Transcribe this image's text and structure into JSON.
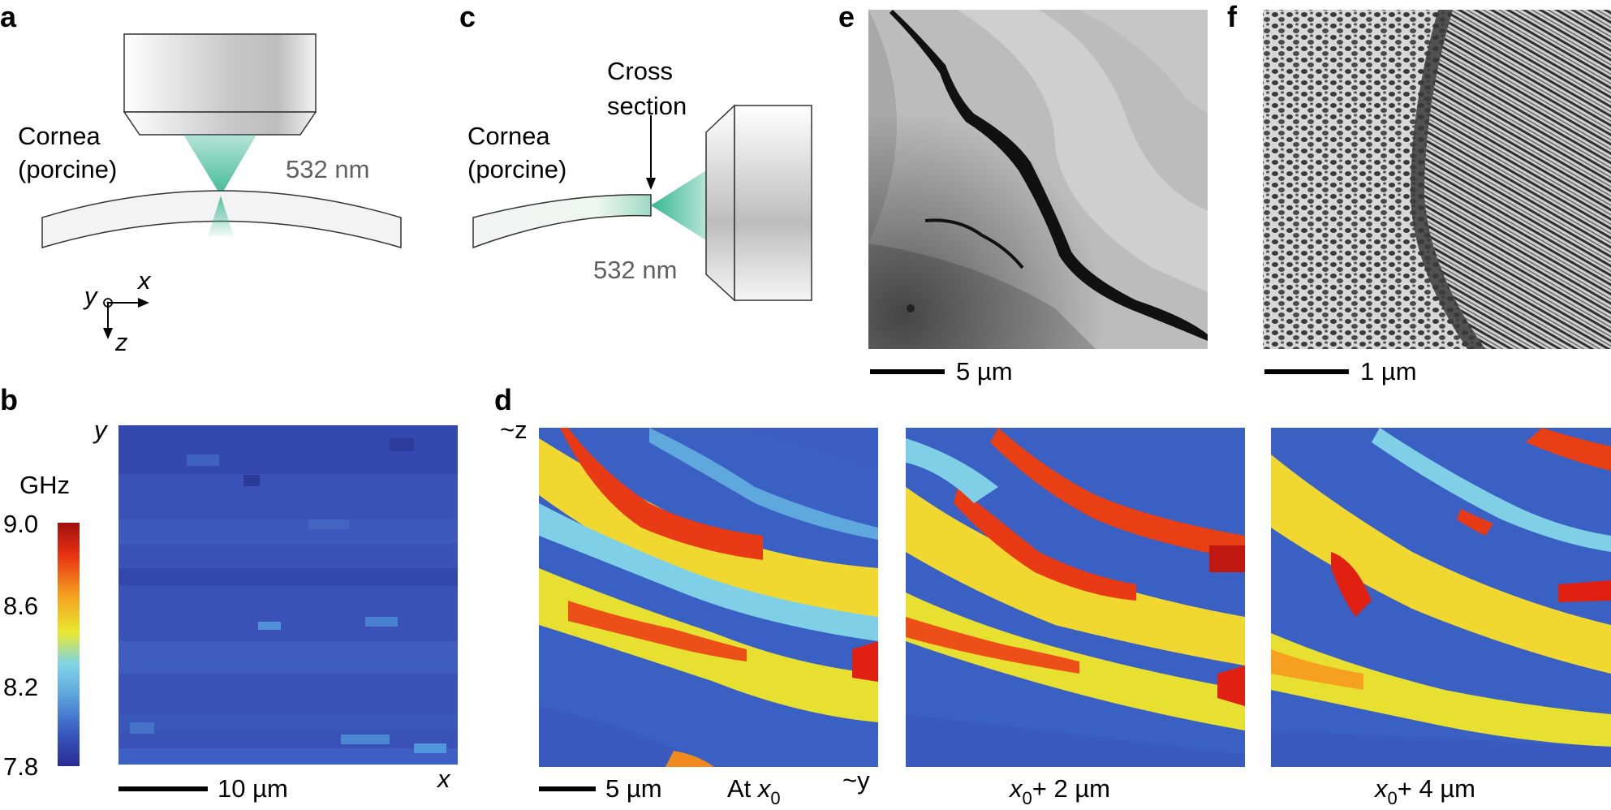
{
  "panels": {
    "a": {
      "letter": "a",
      "specimen_line1": "Cornea",
      "specimen_line2": "(porcine)",
      "wavelength": "532 nm",
      "axes": {
        "x": "x",
        "y": "y",
        "z": "z"
      }
    },
    "b": {
      "letter": "b",
      "y_axis": "y",
      "x_axis": "x",
      "scalebar": "10 µm",
      "colorbar_unit": "GHz",
      "colorbar_ticks": [
        "9.0",
        "8.6",
        "8.2",
        "7.8"
      ]
    },
    "c": {
      "letter": "c",
      "section_line1": "Cross",
      "section_line2": "section",
      "specimen_line1": "Cornea",
      "specimen_line2": "(porcine)",
      "wavelength": "532 nm"
    },
    "d": {
      "letter": "d",
      "z_axis": "~z",
      "y_axis": "~y",
      "scalebar": "5 µm",
      "maps": [
        {
          "prefix": "At ",
          "var": "x",
          "sub": "0",
          "suffix": ""
        },
        {
          "prefix": "",
          "var": "x",
          "sub": "0",
          "suffix": "+ 2 µm"
        },
        {
          "prefix": "",
          "var": "x",
          "sub": "0",
          "suffix": "+ 4 µm"
        }
      ]
    },
    "e": {
      "letter": "e",
      "scalebar": "5 µm"
    },
    "f": {
      "letter": "f",
      "scalebar": "1 µm"
    }
  },
  "colors": {
    "beam_green": "#2db38a",
    "colormap": [
      "#2a2a90",
      "#3a5fc6",
      "#5fa8de",
      "#7fd4e6",
      "#e8e830",
      "#f5a020",
      "#e83010",
      "#a01010"
    ]
  }
}
